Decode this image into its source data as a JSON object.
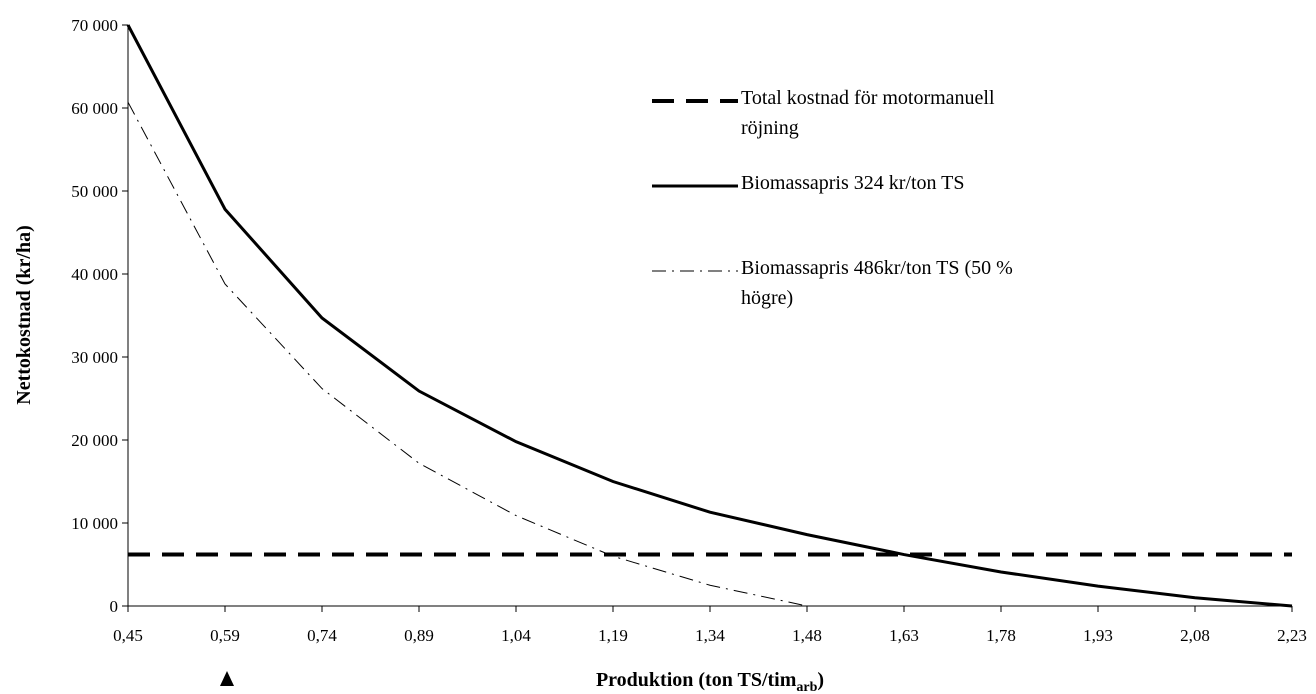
{
  "chart_data": {
    "type": "line",
    "ylabel": "Nettokostnad (kr/ha)",
    "xlabel": "Produktion (ton TS/tim",
    "xlabel_sub": "arb",
    "xlabel_end": ")",
    "categories": [
      "0,45",
      "0,59",
      "0,74",
      "0,89",
      "1,04",
      "1,19",
      "1,34",
      "1,48",
      "1,63",
      "1,78",
      "1,93",
      "2,08",
      "2,23"
    ],
    "series": [
      {
        "name": "Total kostnad för motormanuell röjning",
        "color": "#000000",
        "line_style": "dashed",
        "width": 4,
        "values": [
          6200,
          6200,
          6200,
          6200,
          6200,
          6200,
          6200,
          6200,
          6200,
          6200,
          6200,
          6200,
          6200
        ]
      },
      {
        "name": "Biomassapris 324 kr/ton TS",
        "color": "#000000",
        "line_style": "solid",
        "width": 3,
        "values": [
          70000,
          47800,
          34700,
          25900,
          19800,
          15000,
          11300,
          8600,
          6200,
          4100,
          2400,
          1000,
          0
        ]
      },
      {
        "name": "Biomassapris 486kr/ton TS (50 % högre)",
        "color": "#000000",
        "line_style": "dashdot",
        "width": 1,
        "values": [
          60700,
          38800,
          26200,
          17200,
          10900,
          6000,
          2500,
          0,
          null,
          null,
          null,
          null,
          null
        ]
      }
    ],
    "ylim": [
      0,
      70000
    ],
    "yticks": [
      0,
      {
        "value": 10000,
        "label": "10 000"
      },
      {
        "value": 20000,
        "label": "20 000"
      },
      {
        "value": 30000,
        "label": "30 000"
      },
      {
        "value": 40000,
        "label": "40 000"
      },
      {
        "value": 50000,
        "label": "50 000"
      },
      {
        "value": 60000,
        "label": "60 000"
      },
      {
        "value": 70000,
        "label": "70 000"
      }
    ]
  }
}
